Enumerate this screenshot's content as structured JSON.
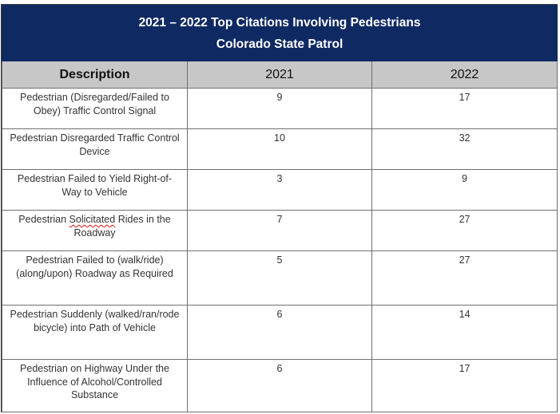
{
  "title": {
    "line1": "2021 – 2022 Top Citations Involving Pedestrians",
    "line2": "Colorado State Patrol"
  },
  "columns": {
    "description": "Description",
    "year1": "2021",
    "year2": "2022"
  },
  "rows": [
    {
      "description": "Pedestrian (Disregarded/Failed to Obey) Traffic Control Signal",
      "v2021": "9",
      "v2022": "17"
    },
    {
      "description": "Pedestrian Disregarded Traffic Control Device",
      "v2021": "10",
      "v2022": "32"
    },
    {
      "description": "Pedestrian Failed to Yield Right-of-Way to Vehicle",
      "v2021": "3",
      "v2022": "9"
    },
    {
      "description_pre": "Pedestrian ",
      "description_flag": "Solicitated",
      "description_post": " Rides in the Roadway",
      "v2021": "7",
      "v2022": "27"
    },
    {
      "description": "Pedestrian Failed to (walk/ride) (along/upon) Roadway as Required",
      "v2021": "5",
      "v2022": "27"
    },
    {
      "description": "Pedestrian Suddenly (walked/ran/rode bicycle) into Path of Vehicle",
      "v2021": "6",
      "v2022": "14"
    },
    {
      "description": "Pedestrian on Highway Under the Influence of Alcohol/Controlled Substance",
      "v2021": "6",
      "v2022": "17"
    }
  ]
}
